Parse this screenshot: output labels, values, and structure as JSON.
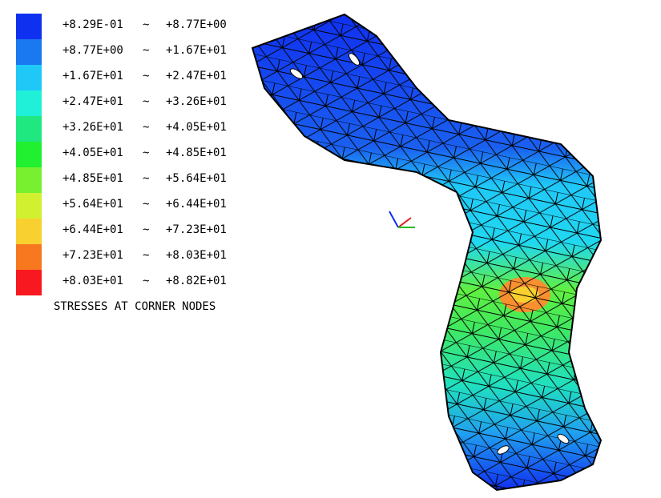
{
  "legend": {
    "separator": "~",
    "items": [
      {
        "color": "#1030f0",
        "low": "+8.29E-01",
        "high": "+8.77E+00"
      },
      {
        "color": "#1a78f0",
        "low": "+8.77E+00",
        "high": "+1.67E+01"
      },
      {
        "color": "#20c8f8",
        "low": "+1.67E+01",
        "high": "+2.47E+01"
      },
      {
        "color": "#20f0d8",
        "low": "+2.47E+01",
        "high": "+3.26E+01"
      },
      {
        "color": "#20e880",
        "low": "+3.26E+01",
        "high": "+4.05E+01"
      },
      {
        "color": "#20f030",
        "low": "+4.05E+01",
        "high": "+4.85E+01"
      },
      {
        "color": "#78f030",
        "low": "+4.85E+01",
        "high": "+5.64E+01"
      },
      {
        "color": "#d0f030",
        "low": "+5.64E+01",
        "high": "+6.44E+01"
      },
      {
        "color": "#f8d030",
        "low": "+6.44E+01",
        "high": "+7.23E+01"
      },
      {
        "color": "#f87820",
        "low": "+7.23E+01",
        "high": "+8.03E+01"
      },
      {
        "color": "#f81820",
        "low": "+8.03E+01",
        "high": "+8.82E+01"
      }
    ]
  },
  "caption": "STRESSES AT CORNER NODES"
}
